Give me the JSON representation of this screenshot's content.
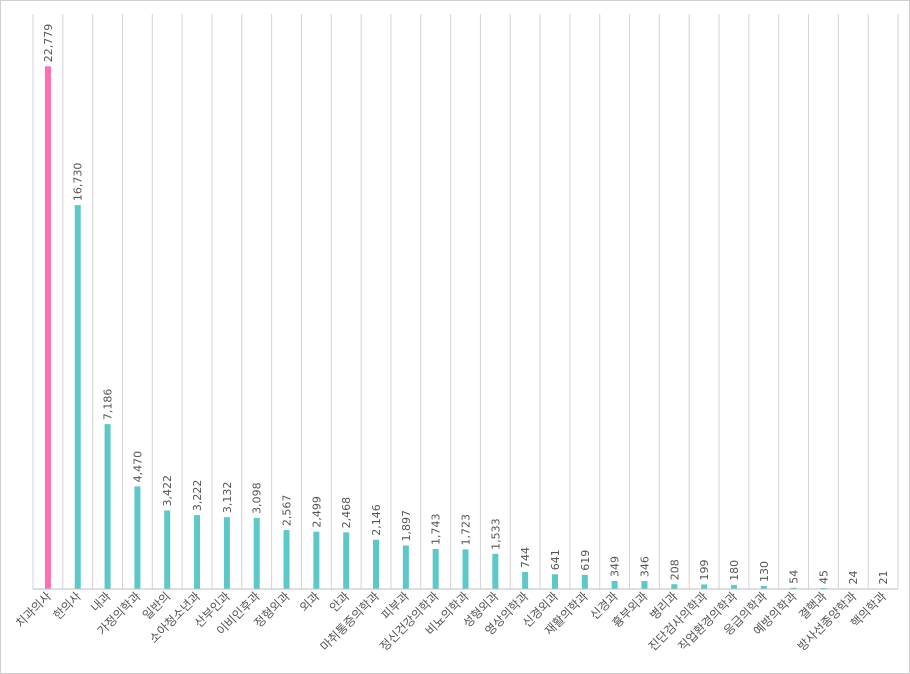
{
  "chart_data": {
    "type": "bar",
    "categories": [
      "치과의사",
      "한의사",
      "내과",
      "가정의학과",
      "일반의",
      "소아청소년과",
      "산부인과",
      "이비인후과",
      "정형외과",
      "외과",
      "안과",
      "마취통증의학과",
      "피부과",
      "정신건강의학과",
      "비뇨의학과",
      "성형외과",
      "영상의학과",
      "신경외과",
      "재활의학과",
      "신경과",
      "흉부외과",
      "병리과",
      "진단검사의학과",
      "직업환경의학과",
      "응급의학과",
      "예방의학과",
      "결핵과",
      "방사선종양학과",
      "핵의학과"
    ],
    "values": [
      22779,
      16730,
      7186,
      4470,
      3422,
      3222,
      3132,
      3098,
      2567,
      2499,
      2468,
      2146,
      1897,
      1743,
      1723,
      1533,
      744,
      641,
      619,
      349,
      346,
      208,
      199,
      180,
      130,
      54,
      45,
      24,
      21
    ],
    "value_labels": [
      "22,779",
      "16,730",
      "7,186",
      "4,470",
      "3,422",
      "3,222",
      "3,132",
      "3,098",
      "2,567",
      "2,499",
      "2,468",
      "2,146",
      "1,897",
      "1,743",
      "1,723",
      "1,533",
      "744",
      "641",
      "619",
      "349",
      "346",
      "208",
      "199",
      "180",
      "130",
      "54",
      "45",
      "24",
      "21"
    ],
    "ylim": [
      0,
      25000
    ],
    "grid": "vertical",
    "colors": {
      "highlight": "#ff6fae",
      "default": "#5cc8c8",
      "grid": "#d4d4d4",
      "text": "#555555"
    }
  }
}
